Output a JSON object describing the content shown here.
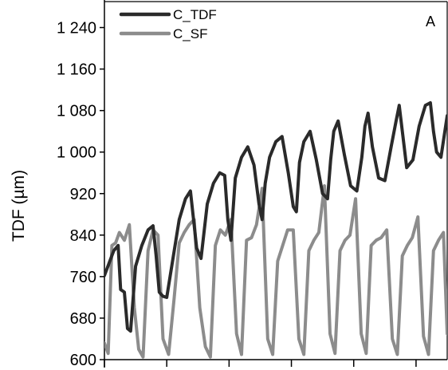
{
  "chart_data": {
    "type": "line",
    "title": "",
    "panel_label": "A",
    "ylabel": "TDF (µm)",
    "xlabel": "",
    "ylim": [
      600,
      1290
    ],
    "yticks": [
      600,
      680,
      760,
      840,
      920,
      1000,
      1080,
      1160,
      1240
    ],
    "ytick_labels": [
      "600",
      "680",
      "760",
      "840",
      "920",
      "1 000",
      "1 080",
      "1 160",
      "1 240"
    ],
    "xlim": [
      0,
      55
    ],
    "xtick_values": [
      0,
      10,
      20,
      30,
      40,
      50
    ],
    "grid": false,
    "legend_position": "top-left",
    "series": [
      {
        "name": "C_TDF",
        "color": "#2a2a2a",
        "x": [
          0,
          1.5,
          2.2,
          2.6,
          3.2,
          3.7,
          4.2,
          5,
          6,
          7,
          7.8,
          8.3,
          8.8,
          9.4,
          10,
          11,
          12,
          13,
          13.8,
          14.3,
          14.8,
          15.5,
          16.5,
          17.5,
          18.5,
          19.3,
          19.8,
          20.3,
          21,
          22,
          23,
          24,
          24.8,
          25.3,
          25.8,
          26.5,
          27.5,
          28.5,
          29.5,
          30.3,
          30.8,
          31.3,
          32,
          33,
          34,
          35,
          35.8,
          36.3,
          36.8,
          37.5,
          38.5,
          39.5,
          40.5,
          41.3,
          41.8,
          42.3,
          43,
          44,
          45,
          46,
          46.8,
          47.3,
          47.8,
          48.5,
          49.5,
          50.5,
          51.5,
          52.3,
          52.8,
          53.3,
          54,
          55
        ],
        "values": [
          762,
          810,
          820,
          735,
          730,
          660,
          655,
          780,
          820,
          850,
          858,
          800,
          730,
          722,
          720,
          795,
          870,
          910,
          925,
          870,
          815,
          795,
          900,
          940,
          960,
          955,
          870,
          830,
          950,
          990,
          1010,
          975,
          900,
          870,
          940,
          990,
          1020,
          1030,
          960,
          895,
          885,
          980,
          1020,
          1040,
          985,
          920,
          910,
          985,
          1040,
          1060,
          995,
          935,
          925,
          990,
          1050,
          1075,
          1010,
          950,
          945,
          1010,
          1060,
          1090,
          1040,
          970,
          985,
          1050,
          1090,
          1095,
          1040,
          1000,
          990,
          1070
        ]
      },
      {
        "name": "C_SF",
        "color": "#8c8c8c",
        "x": [
          0,
          0.6,
          1.2,
          1.8,
          2.4,
          3.2,
          4,
          4.8,
          5.5,
          6.2,
          7,
          7.8,
          8.6,
          9.4,
          10.3,
          11.2,
          12,
          12.8,
          13.6,
          14.4,
          15.3,
          16.2,
          17,
          17.8,
          18.6,
          19.4,
          20.3,
          21.2,
          22,
          22.8,
          23.6,
          24.4,
          25.3,
          26.2,
          27,
          27.8,
          28.6,
          29.4,
          30.3,
          31.2,
          32,
          32.8,
          33.6,
          34.4,
          35.3,
          36.2,
          37,
          37.8,
          38.6,
          39.4,
          40.3,
          41.2,
          42,
          42.8,
          43.6,
          44.4,
          45.3,
          46.2,
          47,
          47.8,
          48.6,
          49.4,
          50.3,
          51.2,
          52,
          52.8,
          53.6,
          54.4,
          55
        ],
        "values": [
          632,
          612,
          820,
          825,
          845,
          830,
          860,
          700,
          620,
          605,
          810,
          850,
          840,
          640,
          610,
          720,
          825,
          845,
          860,
          870,
          700,
          625,
          605,
          820,
          850,
          840,
          870,
          650,
          610,
          830,
          835,
          860,
          930,
          640,
          610,
          790,
          820,
          850,
          850,
          640,
          610,
          810,
          830,
          845,
          935,
          650,
          612,
          810,
          830,
          840,
          910,
          650,
          612,
          820,
          830,
          835,
          850,
          640,
          610,
          800,
          820,
          835,
          875,
          645,
          610,
          810,
          830,
          845,
          650
        ]
      }
    ]
  }
}
